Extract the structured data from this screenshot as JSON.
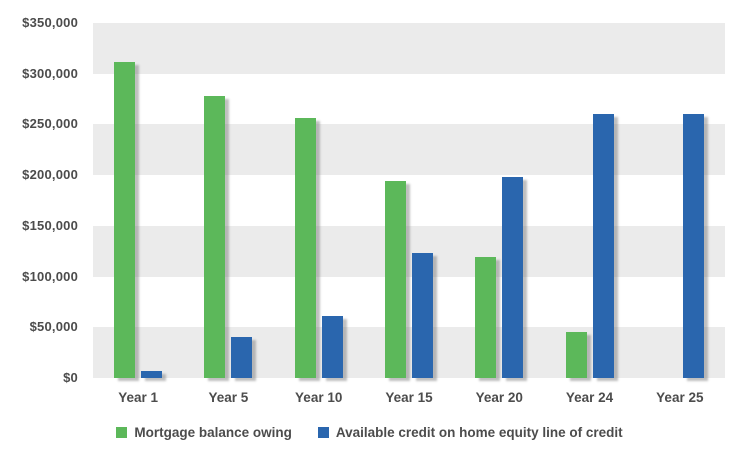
{
  "chart_data": {
    "type": "bar",
    "title": "",
    "xlabel": "",
    "ylabel": "",
    "categories": [
      "Year 1",
      "Year 5",
      "Year 10",
      "Year 15",
      "Year 20",
      "Year 24",
      "Year 25"
    ],
    "series": [
      {
        "name": "Mortgage balance owing",
        "color": "#5CB85A",
        "values": [
          312000,
          278000,
          256000,
          194000,
          119000,
          45000,
          0
        ]
      },
      {
        "name": "Available credit on home equity line of credit",
        "color": "#2A66AE",
        "values": [
          7000,
          40000,
          61000,
          123000,
          198000,
          260000,
          260000
        ]
      }
    ],
    "ylim": [
      0,
      350000
    ],
    "ytick_step": 50000,
    "ytick_labels_top_to_bottom": [
      "$350,000",
      "$300,000",
      "$250,000",
      "$200,000",
      "$150,000",
      "$100,000",
      "$50,000",
      "$0"
    ],
    "grid": "alternating-horizontal-bands",
    "band_color": "#EBEBEB",
    "background_color": "#FFFFFF",
    "axis_text_color": "#4C4C4C",
    "legend_position": "bottom"
  }
}
